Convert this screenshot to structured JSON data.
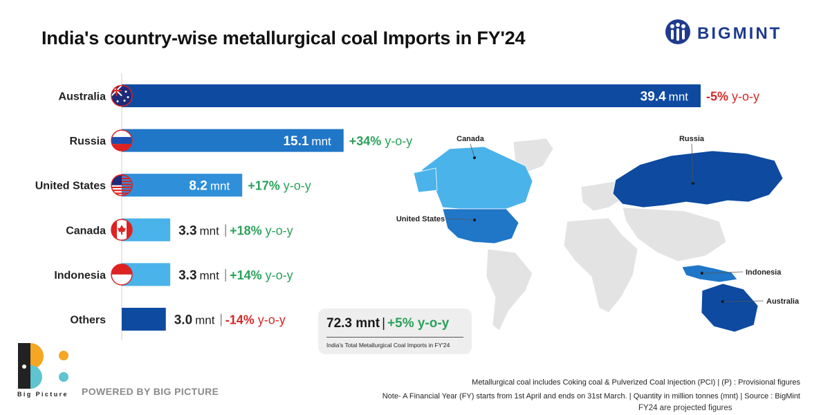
{
  "title": "India's country-wise metallurgical coal Imports in FY'24",
  "brand": {
    "name": "BIGMINT",
    "color": "#1f3b8f"
  },
  "colors": {
    "dark_blue": "#0d4aa0",
    "mid_blue": "#2076c7",
    "light_blue": "#4ab3ea",
    "positive": "#2aa15a",
    "negative": "#d42828",
    "land": "#e3e3e3"
  },
  "chart_data": {
    "type": "bar",
    "orientation": "horizontal",
    "unit": "mnt",
    "categories": [
      "Australia",
      "Russia",
      "United States",
      "Canada",
      "Indonesia",
      "Others"
    ],
    "values": [
      39.4,
      15.1,
      8.2,
      3.3,
      3.3,
      3.0
    ],
    "value_labels": [
      "39.4",
      "15.1",
      "8.2",
      "3.3",
      "3.3",
      "3.0"
    ],
    "yoy_change": [
      "-5%",
      "+34%",
      "+17%",
      "+18%",
      "+14%",
      "-14%"
    ],
    "yoy_suffix": "y-o-y",
    "flags": [
      "australia-flag",
      "russia-flag",
      "usa-flag",
      "canada-flag",
      "indonesia-flag",
      ""
    ],
    "bar_colors": [
      "#0d4aa0",
      "#2076c7",
      "#2f8fd9",
      "#4ab3ea",
      "#4ab3ea",
      "#0d4aa0"
    ],
    "xlim": [
      0,
      39.4
    ]
  },
  "map": {
    "labels": [
      "Canada",
      "Russia",
      "United States",
      "Indonesia",
      "Australia"
    ]
  },
  "total": {
    "value": "72.3 mnt",
    "separator": "|",
    "change": "+5% y-o-y",
    "caption": "India's Total Metallurgical Coal Imports in FY'24"
  },
  "footer": {
    "bp_name": "Big Picture",
    "powered": "POWERED BY BIG PICTURE",
    "note_pci": "Metallurgical coal includes Coking coal & Pulverized Coal Injection (PCI) | (P) : Provisional figures",
    "note_fy": "Note- A Financial Year (FY) starts from 1st April and ends on 31st March. | Quantity in million tonnes (mnt) | Source : BigMint",
    "note_projected": "FY24 are projected figures"
  }
}
